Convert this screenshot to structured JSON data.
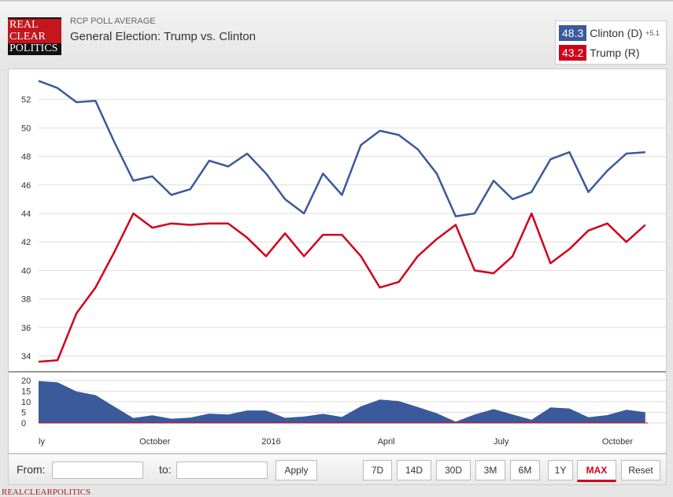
{
  "header": {
    "logo_lines": [
      "REAL",
      "CLEAR",
      "POLITICS"
    ],
    "subtitle": "RCP POLL AVERAGE",
    "title": "General Election: Trump vs. Clinton"
  },
  "legend": [
    {
      "value": "48.3",
      "label": "Clinton (D)",
      "color": "#3a5a9b",
      "spread": "+5.1"
    },
    {
      "value": "43.2",
      "label": "Trump (R)",
      "color": "#d0021b"
    }
  ],
  "toolbar": {
    "from_label": "From:",
    "from_value": "",
    "to_label": "to:",
    "to_value": "",
    "apply": "Apply",
    "ranges": [
      "7D",
      "14D",
      "30D",
      "3M",
      "6M",
      "1Y",
      "MAX",
      "Reset"
    ],
    "active_range": "MAX"
  },
  "footer": "REALCLEARPOLITICS",
  "chart_data": {
    "type": "line",
    "x_start": "2015-07-01",
    "x_end": "2016-10-25",
    "ylim": [
      33,
      53.5
    ],
    "yticks": [
      "34",
      "36",
      "38",
      "40",
      "42",
      "44",
      "46",
      "48",
      "50",
      "52"
    ],
    "xticks": [
      {
        "label": "ly",
        "date": "2015-07-01"
      },
      {
        "label": "October",
        "date": "2015-10-01"
      },
      {
        "label": "2016",
        "date": "2016-01-01"
      },
      {
        "label": "April",
        "date": "2016-04-01"
      },
      {
        "label": "July",
        "date": "2016-07-01"
      },
      {
        "label": "October",
        "date": "2016-10-01"
      }
    ],
    "spread_yticks": [
      "0",
      "5",
      "10",
      "15",
      "20"
    ],
    "grid": true,
    "x": [
      "2015-07-01",
      "2015-07-16",
      "2015-07-31",
      "2015-08-15",
      "2015-08-30",
      "2015-09-14",
      "2015-09-29",
      "2015-10-14",
      "2015-10-29",
      "2015-11-13",
      "2015-11-28",
      "2015-12-13",
      "2015-12-28",
      "2016-01-12",
      "2016-01-27",
      "2016-02-11",
      "2016-02-26",
      "2016-03-12",
      "2016-03-27",
      "2016-04-11",
      "2016-04-26",
      "2016-05-11",
      "2016-05-26",
      "2016-06-10",
      "2016-06-25",
      "2016-07-10",
      "2016-07-25",
      "2016-08-09",
      "2016-08-24",
      "2016-09-08",
      "2016-09-23",
      "2016-10-08",
      "2016-10-23"
    ],
    "series": [
      {
        "name": "Clinton (D)",
        "color": "#3a5a9b",
        "values": [
          53.3,
          52.8,
          51.8,
          51.9,
          49,
          46.3,
          46.6,
          45.3,
          45.7,
          47.7,
          47.3,
          48.2,
          46.8,
          45,
          44,
          46.8,
          45.3,
          48.8,
          49.8,
          49.5,
          48.5,
          46.8,
          43.8,
          44,
          46.3,
          45,
          45.5,
          47.8,
          48.3,
          45.5,
          47,
          48.2,
          48.3
        ]
      },
      {
        "name": "Trump (R)",
        "color": "#d0021b",
        "values": [
          33.6,
          33.7,
          37,
          38.8,
          41.3,
          44,
          43,
          43.3,
          43.2,
          43.3,
          43.3,
          42.3,
          41,
          42.6,
          41,
          42.5,
          42.5,
          41,
          38.8,
          39.2,
          41,
          42.2,
          43.2,
          40,
          39.8,
          41,
          44,
          40.5,
          41.5,
          42.8,
          43.3,
          42,
          43.2
        ]
      }
    ]
  }
}
